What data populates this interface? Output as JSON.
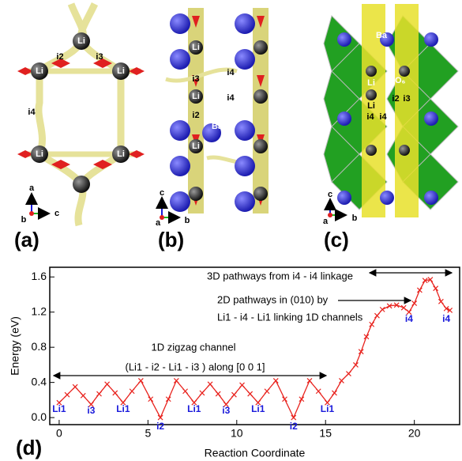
{
  "panels": [
    {
      "label": "(a)",
      "texts": [
        "Li",
        "Li",
        "Li",
        "Li",
        "Li",
        "i2",
        "i3",
        "i4"
      ],
      "axes": [
        "a",
        "b",
        "c"
      ]
    },
    {
      "label": "(b)",
      "texts": [
        "Li",
        "i4",
        "i3",
        "Li",
        "i4",
        "i2",
        "Li",
        "Ba"
      ],
      "axes": [
        "c",
        "a",
        "b"
      ]
    },
    {
      "label": "(c)",
      "texts": [
        "Ba",
        "Li",
        "TiO₆",
        "i2",
        "i3",
        "Li",
        "i4",
        "i4"
      ],
      "axes": [
        "c",
        "a",
        "b"
      ]
    }
  ],
  "chart_data": {
    "type": "line",
    "label": "(d)",
    "xlabel": "Reaction Coordinate",
    "ylabel": "Energy (eV)",
    "x": [
      0,
      0.45,
      0.9,
      1.35,
      1.8,
      2.25,
      2.7,
      3.15,
      3.6,
      4.1,
      4.6,
      5.15,
      5.7,
      6.15,
      6.6,
      7.1,
      7.6,
      8.05,
      8.5,
      8.95,
      9.4,
      9.85,
      10.3,
      10.75,
      11.2,
      11.7,
      12.2,
      12.7,
      13.2,
      13.65,
      14.1,
      14.6,
      15.1,
      15.5,
      15.9,
      16.3,
      16.7,
      17.0,
      17.3,
      17.6,
      17.9,
      18.2,
      18.6,
      19.0,
      19.4,
      19.7,
      20.0,
      20.3,
      20.6,
      20.9,
      21.2,
      21.5,
      21.8,
      22.0
    ],
    "series": [
      {
        "name": "Energy",
        "color": "#e8231e",
        "values": [
          0.17,
          0.26,
          0.35,
          0.25,
          0.15,
          0.27,
          0.38,
          0.28,
          0.17,
          0.3,
          0.42,
          0.21,
          0.0,
          0.21,
          0.42,
          0.3,
          0.17,
          0.28,
          0.38,
          0.27,
          0.15,
          0.26,
          0.37,
          0.27,
          0.17,
          0.3,
          0.42,
          0.21,
          0.0,
          0.21,
          0.42,
          0.3,
          0.17,
          0.28,
          0.42,
          0.5,
          0.6,
          0.75,
          0.92,
          1.06,
          1.16,
          1.23,
          1.27,
          1.28,
          1.25,
          1.2,
          1.3,
          1.45,
          1.56,
          1.57,
          1.47,
          1.32,
          1.24,
          1.22
        ]
      }
    ],
    "xlim": [
      -0.53,
      22.55
    ],
    "ylim": [
      -0.08,
      1.71
    ],
    "xticks": [
      0,
      5,
      10,
      15,
      20
    ],
    "yticks": [
      {
        "value": 0,
        "label": "0.0"
      },
      0.4,
      0.8,
      1.2,
      1.6
    ],
    "annotations": [
      "3D pathways from i4 - i4 linkage",
      "2D pathways in (010) by",
      "Li1 - i4 - Li1 linking 1D channels",
      "1D zigzag channel",
      "(Li1 - i2 - Li1 - i3 ) along [0 0 1]"
    ],
    "point_labels": [
      "Li1",
      "i3",
      "Li1",
      "i2",
      "Li1",
      "i3",
      "Li1",
      "i2",
      "Li1",
      "i4",
      "i4"
    ]
  }
}
